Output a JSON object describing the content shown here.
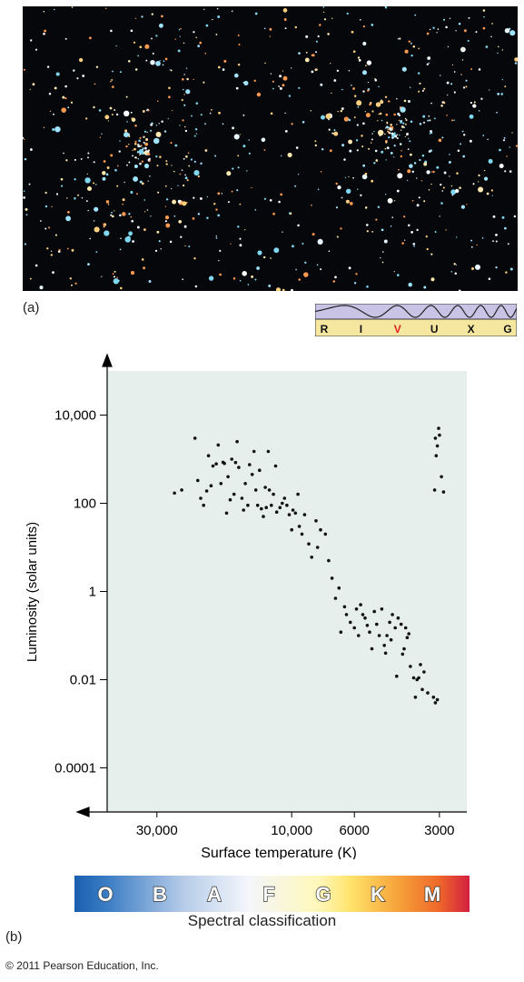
{
  "panel_a_label": "(a)",
  "panel_b_label": "(b)",
  "wavebands": {
    "labels": [
      "R",
      "I",
      "V",
      "U",
      "X",
      "G"
    ],
    "highlight": "V",
    "highlight_color": "#e02020",
    "label_bg": "#f6e7a0",
    "wave_bg": "#c9c4e6"
  },
  "chart_data": {
    "type": "scatter",
    "title": "",
    "xlabel": "Surface temperature (K)",
    "ylabel": "Luminosity (solar units)",
    "x_scale": "log-reversed",
    "y_scale": "log",
    "xlim": [
      45000,
      2400
    ],
    "ylim": [
      1e-05,
      100000
    ],
    "x_ticks": [
      30000,
      10000,
      6000,
      3000
    ],
    "x_tick_labels": [
      "30,000",
      "10,000",
      "6000",
      "3000"
    ],
    "y_ticks": [
      10000,
      100,
      1,
      0.01,
      0.0001
    ],
    "y_tick_labels": [
      "10,000",
      "100",
      "1",
      "0.01",
      "0.0001"
    ],
    "grid": false,
    "plot_bg": "#e6efec",
    "point_color": "#111111",
    "points": [
      [
        26000,
        170
      ],
      [
        24500,
        200
      ],
      [
        22000,
        3000
      ],
      [
        21500,
        330
      ],
      [
        21000,
        130
      ],
      [
        20500,
        90
      ],
      [
        20000,
        190
      ],
      [
        19700,
        1200
      ],
      [
        19300,
        250
      ],
      [
        19000,
        700
      ],
      [
        18500,
        780
      ],
      [
        18200,
        2100
      ],
      [
        17800,
        280
      ],
      [
        17500,
        850
      ],
      [
        17300,
        800
      ],
      [
        17000,
        60
      ],
      [
        16800,
        400
      ],
      [
        16500,
        120
      ],
      [
        16300,
        1000
      ],
      [
        16000,
        160
      ],
      [
        15800,
        840
      ],
      [
        15600,
        2500
      ],
      [
        15400,
        650
      ],
      [
        15000,
        130
      ],
      [
        14800,
        70
      ],
      [
        14600,
        280
      ],
      [
        14300,
        90
      ],
      [
        14100,
        750
      ],
      [
        13800,
        450
      ],
      [
        13600,
        1500
      ],
      [
        13400,
        200
      ],
      [
        13200,
        90
      ],
      [
        13000,
        560
      ],
      [
        12800,
        75
      ],
      [
        12600,
        50
      ],
      [
        12400,
        230
      ],
      [
        12300,
        80
      ],
      [
        12100,
        1500
      ],
      [
        12000,
        200
      ],
      [
        11800,
        90
      ],
      [
        11600,
        160
      ],
      [
        11400,
        700
      ],
      [
        11300,
        63
      ],
      [
        11000,
        80
      ],
      [
        10800,
        100
      ],
      [
        10600,
        130
      ],
      [
        10400,
        90
      ],
      [
        10200,
        55
      ],
      [
        10000,
        25
      ],
      [
        9900,
        70
      ],
      [
        9700,
        60
      ],
      [
        9500,
        160
      ],
      [
        9400,
        30
      ],
      [
        9200,
        20
      ],
      [
        9000,
        55
      ],
      [
        8700,
        12
      ],
      [
        8500,
        6
      ],
      [
        8200,
        40
      ],
      [
        8100,
        10
      ],
      [
        7900,
        25
      ],
      [
        7600,
        20
      ],
      [
        7400,
        5
      ],
      [
        7200,
        2
      ],
      [
        7000,
        0.7
      ],
      [
        6800,
        1.2
      ],
      [
        6700,
        0.12
      ],
      [
        6500,
        0.45
      ],
      [
        6400,
        0.3
      ],
      [
        6200,
        0.2
      ],
      [
        6000,
        0.15
      ],
      [
        5900,
        0.4
      ],
      [
        5800,
        0.1
      ],
      [
        5700,
        0.5
      ],
      [
        5600,
        0.3
      ],
      [
        5500,
        0.25
      ],
      [
        5400,
        0.17
      ],
      [
        5300,
        0.12
      ],
      [
        5200,
        0.05
      ],
      [
        5100,
        0.35
      ],
      [
        5000,
        0.18
      ],
      [
        4900,
        0.1
      ],
      [
        4800,
        0.4
      ],
      [
        4700,
        0.06
      ],
      [
        4650,
        0.04
      ],
      [
        4600,
        0.1
      ],
      [
        4500,
        0.2
      ],
      [
        4450,
        0.08
      ],
      [
        4400,
        0.3
      ],
      [
        4300,
        0.15
      ],
      [
        4250,
        0.012
      ],
      [
        4200,
        0.25
      ],
      [
        4100,
        0.18
      ],
      [
        4050,
        0.038
      ],
      [
        4000,
        0.05
      ],
      [
        3950,
        0.15
      ],
      [
        3900,
        0.09
      ],
      [
        3850,
        0.11
      ],
      [
        3800,
        0.02
      ],
      [
        3700,
        0.011
      ],
      [
        3650,
        0.004
      ],
      [
        3600,
        0.01
      ],
      [
        3550,
        0.011
      ],
      [
        3500,
        0.022
      ],
      [
        3450,
        0.006
      ],
      [
        3400,
        0.015
      ],
      [
        3300,
        0.005
      ],
      [
        3150,
        0.004
      ],
      [
        3100,
        0.003
      ],
      [
        3050,
        0.0035
      ],
      [
        3100,
        3000
      ],
      [
        3080,
        1200
      ],
      [
        3050,
        2000
      ],
      [
        3020,
        5000
      ],
      [
        3000,
        3500
      ],
      [
        2950,
        400
      ],
      [
        2900,
        180
      ],
      [
        3120,
        200
      ]
    ]
  },
  "spectral": {
    "title": "Spectral classification",
    "classes": [
      "O",
      "B",
      "A",
      "F",
      "G",
      "K",
      "M"
    ]
  },
  "copyright": "© 2011 Pearson Education, Inc."
}
